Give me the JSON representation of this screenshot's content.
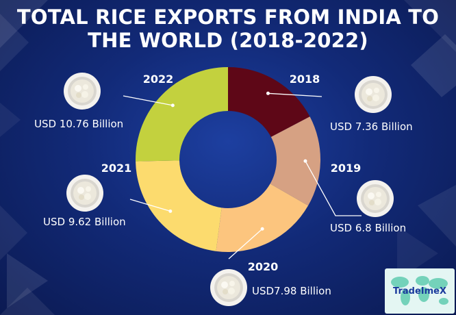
{
  "title": "TOTAL RICE EXPORTS FROM INDIA TO THE WORLD (2018-2022)",
  "logo_text": "TradeImeX",
  "colors": {
    "background": "#122a78",
    "segment_2018": "#5e0717",
    "segment_2019": "#d6a183",
    "segment_2020": "#fcc57e",
    "segment_2021": "#fcdb6e",
    "segment_2022": "#c3d13e",
    "text": "#ffffff"
  },
  "icons": [
    "rice-bowl-icon"
  ],
  "chart_data": {
    "type": "pie",
    "variant": "donut",
    "categories": [
      "2018",
      "2019",
      "2020",
      "2021",
      "2022"
    ],
    "values": [
      7.36,
      6.8,
      7.98,
      9.62,
      10.76
    ],
    "unit": "USD Billion",
    "value_labels": [
      "USD 7.36 Billion",
      "USD 6.8 Billion",
      "USD7.98 Billion",
      "USD 9.62 Billion",
      "USD 10.76 Billion"
    ],
    "title": "TOTAL RICE EXPORTS FROM INDIA TO THE WORLD (2018-2022)",
    "legend": "none"
  }
}
